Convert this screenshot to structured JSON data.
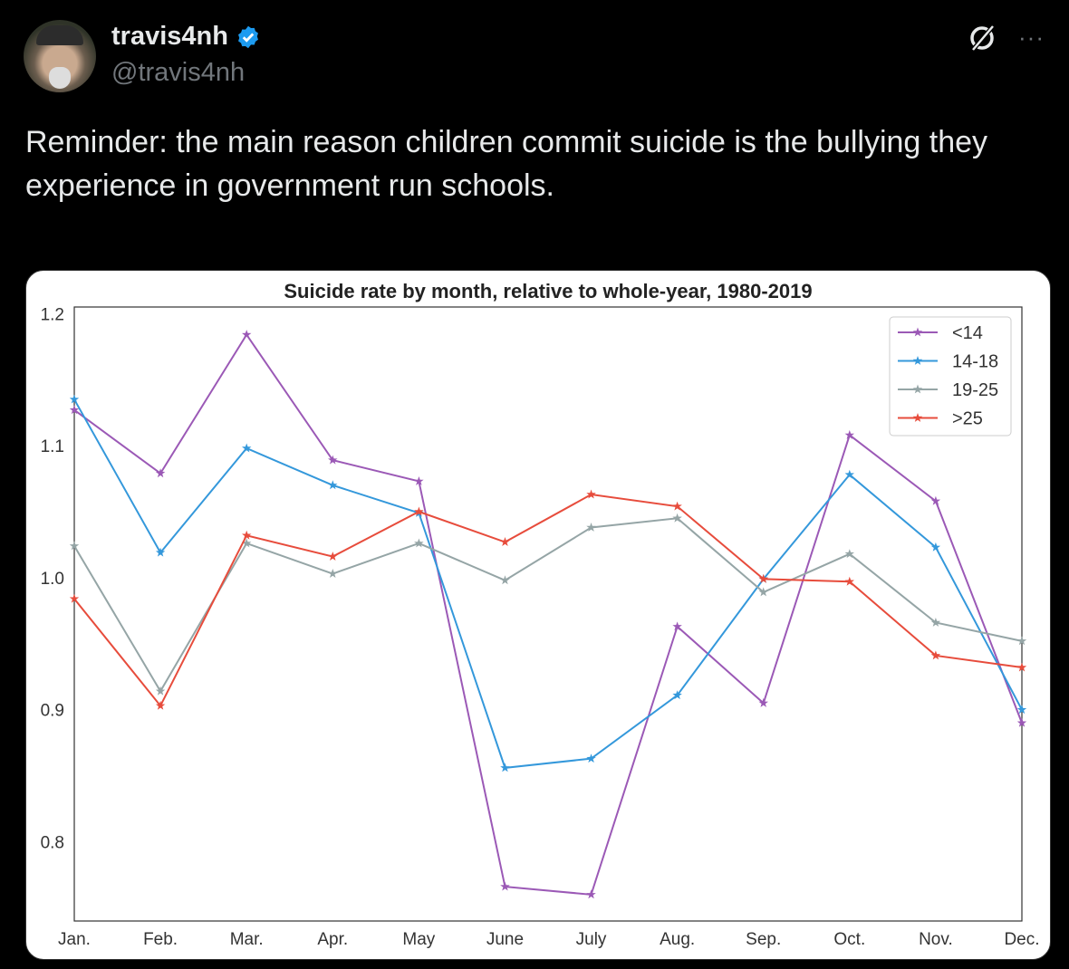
{
  "tweet": {
    "display_name": "travis4nh",
    "handle": "@travis4nh",
    "verified_color": "#1d9bf0",
    "text": "Reminder: the main reason children commit suicide is the bullying they experience in government run schools.",
    "icons": [
      "grok-icon",
      "more-icon"
    ],
    "more_label": "···"
  },
  "chart_data": {
    "type": "line",
    "title": "Suicide rate by month, relative to whole-year, 1980-2019",
    "xlabel": "",
    "ylabel": "",
    "categories": [
      "Jan.",
      "Feb.",
      "Mar.",
      "Apr.",
      "May",
      "June",
      "July",
      "Aug.",
      "Sep.",
      "Oct.",
      "Nov.",
      "Dec."
    ],
    "yticks": [
      "0.8",
      "0.9",
      "1.0",
      "1.1",
      "1.2"
    ],
    "ylim": [
      0.74,
      1.205
    ],
    "legend_position": "top-right",
    "grid": false,
    "series": [
      {
        "name": "<14",
        "color": "#9b59b6",
        "values": [
          1.127,
          1.079,
          1.184,
          1.089,
          1.073,
          0.766,
          0.76,
          0.963,
          0.905,
          1.108,
          1.058,
          0.89
        ]
      },
      {
        "name": "14-18",
        "color": "#3498db",
        "values": [
          1.135,
          1.019,
          1.098,
          1.07,
          1.049,
          0.856,
          0.863,
          0.911,
          0.999,
          1.078,
          1.023,
          0.9
        ]
      },
      {
        "name": "19-25",
        "color": "#95a5a6",
        "values": [
          1.024,
          0.914,
          1.026,
          1.003,
          1.026,
          0.998,
          1.038,
          1.045,
          0.989,
          1.018,
          0.966,
          0.952
        ]
      },
      {
        "name": ">25",
        "color": "#e74c3c",
        "values": [
          0.984,
          0.903,
          1.032,
          1.016,
          1.05,
          1.027,
          1.063,
          1.054,
          0.999,
          0.997,
          0.941,
          0.932
        ]
      }
    ]
  }
}
